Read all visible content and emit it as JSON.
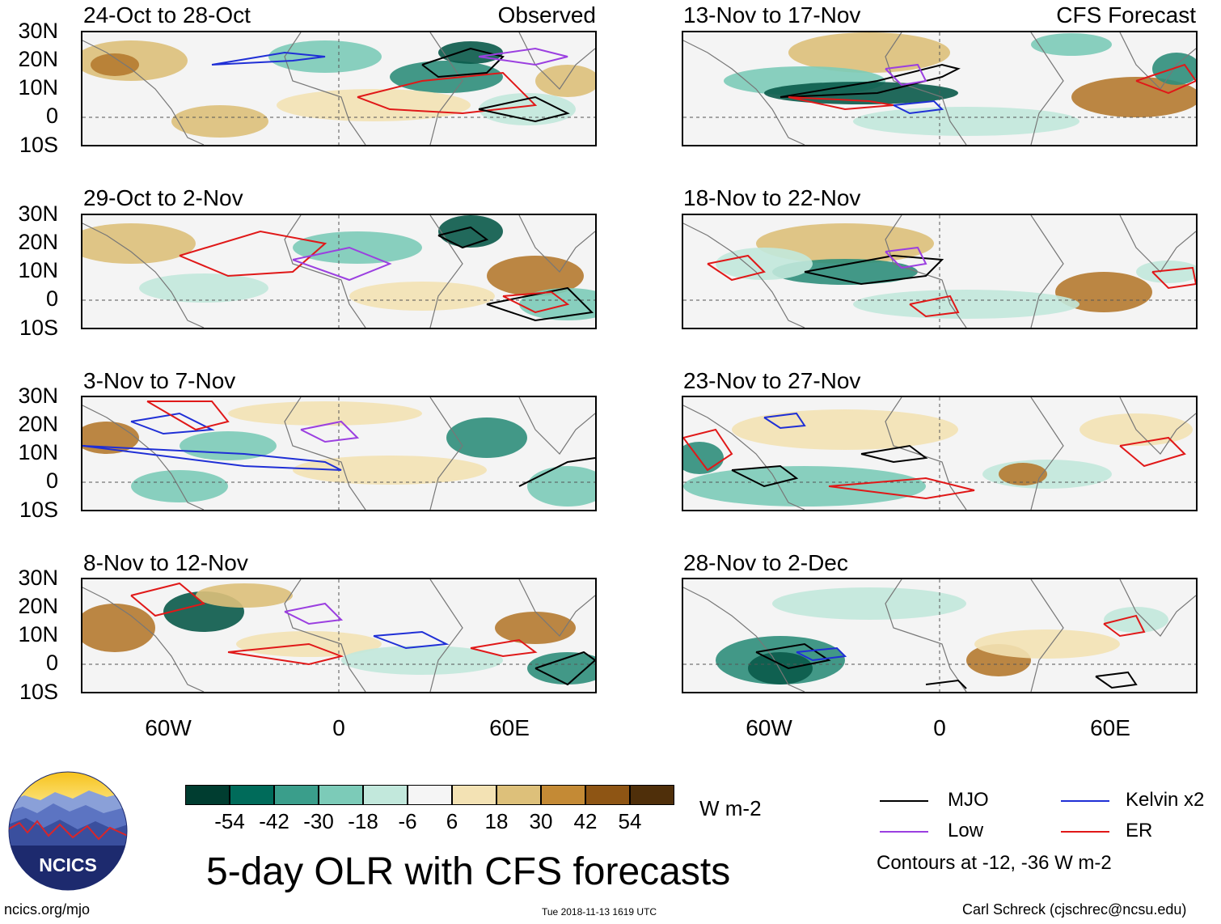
{
  "latitudes": [
    "30N",
    "20N",
    "10N",
    "0",
    "10S"
  ],
  "longitudes": [
    "60W",
    "0",
    "60E"
  ],
  "columns": {
    "observed": {
      "tag": "Observed",
      "panels": [
        {
          "title": "24-Oct to 28-Oct"
        },
        {
          "title": "29-Oct to 2-Nov"
        },
        {
          "title": "3-Nov to 7-Nov"
        },
        {
          "title": "8-Nov to 12-Nov"
        }
      ]
    },
    "forecast": {
      "tag": "CFS Forecast",
      "panels": [
        {
          "title": "13-Nov to 17-Nov"
        },
        {
          "title": "18-Nov to 22-Nov"
        },
        {
          "title": "23-Nov to 27-Nov"
        },
        {
          "title": "28-Nov to 2-Dec"
        }
      ]
    }
  },
  "colorbar": {
    "colors": [
      "#003d30",
      "#006b5a",
      "#3a9e8b",
      "#7ccbb8",
      "#c2e8dc",
      "#f5f5f5",
      "#f3e2b4",
      "#ddc07a",
      "#c48a35",
      "#8e5514",
      "#4f2f0a"
    ],
    "labels": [
      "-54",
      "-42",
      "-30",
      "-18",
      "-6",
      "6",
      "18",
      "30",
      "42",
      "54"
    ],
    "units": "W m-2"
  },
  "legend": {
    "items": [
      {
        "label": "MJO",
        "color": "#000000"
      },
      {
        "label": "Kelvin x2",
        "color": "#1f2fd6"
      },
      {
        "label": "Low",
        "color": "#9b3fe0"
      },
      {
        "label": "ER",
        "color": "#e01818"
      }
    ],
    "note": "Contours at -12, -36 W m-2"
  },
  "logo": {
    "text": "NCICS"
  },
  "footer": {
    "main_title": "5-day OLR with CFS forecasts",
    "url": "ncics.org/mjo",
    "timestamp": "Tue 2018-11-13 1619 UTC",
    "credit": "Carl Schreck (cjschrec@ncsu.edu)"
  }
}
